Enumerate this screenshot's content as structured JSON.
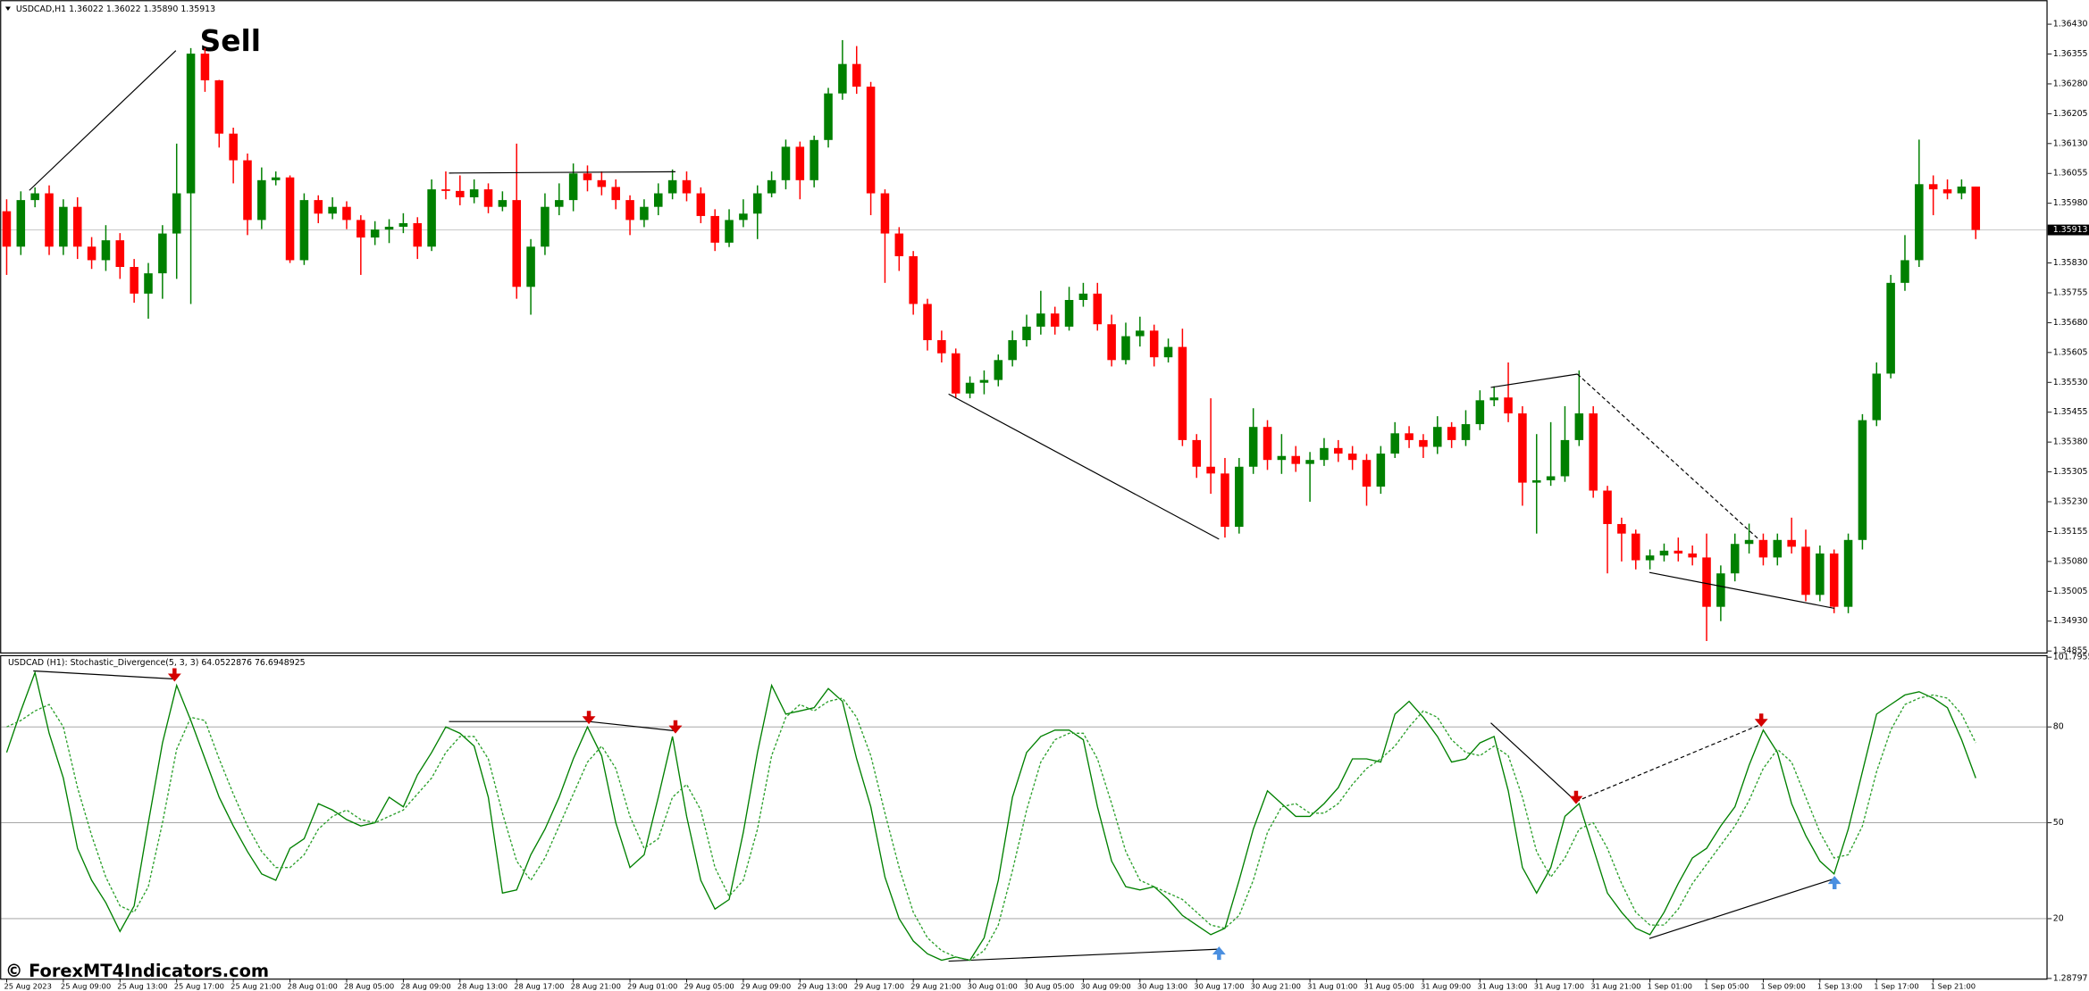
{
  "watermark": "© ForexMT4Indicators.com",
  "chart_data": [
    {
      "type": "candlestick",
      "title": "USDCAD,H1  1.36022 1.36022 1.35890 1.35913",
      "annotation": "Sell",
      "up_color": "#008000",
      "down_color": "#ff0000",
      "current_price": 1.35913,
      "ylim": [
        1.34855,
        1.36474
      ],
      "yticks": [
        {
          "value": 1.3643,
          "label": "1.36430"
        },
        1.36355,
        {
          "value": 1.3628,
          "label": "1.36280"
        },
        1.36205,
        {
          "value": 1.3613,
          "label": "1.36130"
        },
        1.36055,
        {
          "value": 1.3598,
          "label": "1.35980"
        },
        {
          "value": 1.3583,
          "label": "1.35830"
        },
        1.35755,
        {
          "value": 1.3568,
          "label": "1.35680"
        },
        1.35605,
        {
          "value": 1.3553,
          "label": "1.35530"
        },
        1.35455,
        {
          "value": 1.3538,
          "label": "1.35380"
        },
        1.35305,
        {
          "value": 1.3523,
          "label": "1.35230"
        },
        1.35155,
        {
          "value": 1.3508,
          "label": "1.35080"
        },
        1.35005,
        {
          "value": 1.3493,
          "label": "1.34930"
        },
        1.34855
      ],
      "open": [
        1.3596,
        1.35871,
        1.35988,
        1.36005,
        1.35871,
        1.35971,
        1.35871,
        1.35837,
        1.35887,
        1.3582,
        1.35753,
        1.35804,
        1.35904,
        1.36005,
        1.36356,
        1.36289,
        1.36155,
        1.36088,
        1.35938,
        1.36038,
        1.36045,
        1.35837,
        1.35988,
        1.35954,
        1.35971,
        1.35938,
        1.35894,
        1.35914,
        1.35921,
        1.3593,
        1.35871,
        1.36015,
        1.36011,
        1.35995,
        1.36015,
        1.35971,
        1.35988,
        1.3577,
        1.35871,
        1.35971,
        1.35988,
        1.36055,
        1.36038,
        1.36021,
        1.35988,
        1.35938,
        1.35971,
        1.36005,
        1.36038,
        1.36005,
        1.35948,
        1.35881,
        1.35938,
        1.35954,
        1.36005,
        1.36038,
        1.36122,
        1.36038,
        1.36139,
        1.36256,
        1.3633,
        1.36273,
        1.36005,
        1.35904,
        1.35847,
        1.35727,
        1.35636,
        1.35603,
        1.35502,
        1.35529,
        1.35536,
        1.35586,
        1.35636,
        1.3567,
        1.35703,
        1.3567,
        1.35737,
        1.35753,
        1.35676,
        1.35586,
        1.35646,
        1.3566,
        1.35593,
        1.35619,
        1.35385,
        1.35318,
        1.35301,
        1.35167,
        1.35318,
        1.35418,
        1.35335,
        1.35345,
        1.35325,
        1.35335,
        1.35365,
        1.35351,
        1.35335,
        1.35268,
        1.35351,
        1.35402,
        1.35385,
        1.35368,
        1.35418,
        1.35385,
        1.35425,
        1.35485,
        1.35492,
        1.35452,
        1.35278,
        1.35284,
        1.35294,
        1.35385,
        1.35452,
        1.35258,
        1.35174,
        1.3515,
        1.35083,
        1.35095,
        1.35107,
        1.351,
        1.3509,
        1.34966,
        1.3505,
        1.35124,
        1.35134,
        1.3509,
        1.35134,
        1.35117,
        1.34996,
        1.351,
        1.34966,
        1.35134,
        1.35435,
        1.35552,
        1.3578,
        1.35837,
        1.36028,
        1.36015,
        1.36005,
        1.36022
      ],
      "high": [
        1.3599,
        1.3601,
        1.3602,
        1.36025,
        1.3599,
        1.35995,
        1.35895,
        1.35925,
        1.35905,
        1.3584,
        1.3583,
        1.35925,
        1.3613,
        1.3637,
        1.3637,
        1.3629,
        1.3617,
        1.36105,
        1.3607,
        1.3606,
        1.3605,
        1.36005,
        1.36,
        1.35995,
        1.35985,
        1.3595,
        1.35935,
        1.3594,
        1.35955,
        1.35945,
        1.3604,
        1.3606,
        1.3605,
        1.3604,
        1.3603,
        1.3601,
        1.3613,
        1.3589,
        1.36005,
        1.3603,
        1.3608,
        1.36075,
        1.3606,
        1.3604,
        1.36,
        1.3599,
        1.3603,
        1.36065,
        1.3606,
        1.3602,
        1.35965,
        1.35965,
        1.3599,
        1.36025,
        1.3606,
        1.3614,
        1.36135,
        1.3615,
        1.3627,
        1.3639,
        1.36375,
        1.36285,
        1.36015,
        1.3592,
        1.3586,
        1.3574,
        1.3566,
        1.35615,
        1.35545,
        1.3556,
        1.356,
        1.3566,
        1.357,
        1.3576,
        1.3572,
        1.3577,
        1.3578,
        1.3578,
        1.357,
        1.3568,
        1.35695,
        1.35675,
        1.3564,
        1.35665,
        1.354,
        1.3549,
        1.3534,
        1.3534,
        1.35465,
        1.35435,
        1.354,
        1.3537,
        1.35355,
        1.3539,
        1.35385,
        1.3537,
        1.3535,
        1.3537,
        1.3543,
        1.3542,
        1.354,
        1.35445,
        1.3543,
        1.3546,
        1.3551,
        1.3552,
        1.3558,
        1.3547,
        1.354,
        1.3543,
        1.3547,
        1.3556,
        1.3547,
        1.3527,
        1.3519,
        1.3516,
        1.3511,
        1.35125,
        1.3514,
        1.3512,
        1.3515,
        1.3507,
        1.3515,
        1.35175,
        1.3515,
        1.3515,
        1.3519,
        1.3516,
        1.3512,
        1.3511,
        1.3515,
        1.3545,
        1.3558,
        1.358,
        1.359,
        1.3614,
        1.3605,
        1.3604,
        1.3604,
        1.36022
      ],
      "low": [
        1.358,
        1.3585,
        1.3597,
        1.3585,
        1.3585,
        1.3584,
        1.35815,
        1.3581,
        1.3579,
        1.3573,
        1.3569,
        1.3574,
        1.3579,
        1.35727,
        1.3626,
        1.3612,
        1.3603,
        1.359,
        1.35915,
        1.36025,
        1.3583,
        1.35825,
        1.3593,
        1.3594,
        1.35915,
        1.358,
        1.35875,
        1.3588,
        1.35905,
        1.3584,
        1.3586,
        1.3599,
        1.35975,
        1.3598,
        1.35955,
        1.3596,
        1.3574,
        1.357,
        1.3585,
        1.3595,
        1.3596,
        1.3601,
        1.36,
        1.35965,
        1.359,
        1.3592,
        1.3595,
        1.3599,
        1.35985,
        1.3593,
        1.3586,
        1.3587,
        1.3592,
        1.3589,
        1.35995,
        1.36015,
        1.3599,
        1.3602,
        1.3612,
        1.3624,
        1.36255,
        1.3595,
        1.3578,
        1.3581,
        1.357,
        1.3561,
        1.3558,
        1.3549,
        1.3549,
        1.355,
        1.3552,
        1.3557,
        1.3562,
        1.3565,
        1.3565,
        1.3566,
        1.3572,
        1.3566,
        1.3557,
        1.35575,
        1.3562,
        1.3557,
        1.3558,
        1.3537,
        1.3529,
        1.3525,
        1.3514,
        1.3515,
        1.353,
        1.3531,
        1.353,
        1.35305,
        1.3523,
        1.3532,
        1.3533,
        1.3531,
        1.3522,
        1.3525,
        1.3534,
        1.35365,
        1.3534,
        1.3535,
        1.35365,
        1.3537,
        1.3541,
        1.3547,
        1.3543,
        1.3522,
        1.3515,
        1.3527,
        1.3528,
        1.3537,
        1.3524,
        1.3505,
        1.3508,
        1.3506,
        1.3506,
        1.3508,
        1.3508,
        1.3507,
        1.3488,
        1.3493,
        1.3503,
        1.351,
        1.3507,
        1.3507,
        1.351,
        1.3498,
        1.3498,
        1.3495,
        1.3495,
        1.3511,
        1.3542,
        1.3554,
        1.3576,
        1.3582,
        1.3595,
        1.3599,
        1.3599,
        1.3589
      ],
      "close": [
        1.35871,
        1.35988,
        1.36005,
        1.35871,
        1.35971,
        1.35871,
        1.35837,
        1.35887,
        1.3582,
        1.35753,
        1.35804,
        1.35904,
        1.36005,
        1.36356,
        1.36289,
        1.36155,
        1.36088,
        1.35938,
        1.36038,
        1.36045,
        1.35837,
        1.35988,
        1.35954,
        1.35971,
        1.35938,
        1.35894,
        1.35914,
        1.35921,
        1.3593,
        1.35871,
        1.36015,
        1.36011,
        1.35995,
        1.36015,
        1.35971,
        1.35988,
        1.3577,
        1.35871,
        1.35971,
        1.35988,
        1.36055,
        1.36038,
        1.36021,
        1.35988,
        1.35938,
        1.35971,
        1.36005,
        1.36038,
        1.36005,
        1.35948,
        1.35881,
        1.35938,
        1.35954,
        1.36005,
        1.36038,
        1.36122,
        1.36038,
        1.36139,
        1.36256,
        1.3633,
        1.36273,
        1.36005,
        1.35904,
        1.35847,
        1.35727,
        1.35636,
        1.35603,
        1.35502,
        1.35529,
        1.35536,
        1.35586,
        1.35636,
        1.3567,
        1.35703,
        1.3567,
        1.35737,
        1.35753,
        1.35676,
        1.35586,
        1.35646,
        1.3566,
        1.35593,
        1.35619,
        1.35385,
        1.35318,
        1.35301,
        1.35167,
        1.35318,
        1.35418,
        1.35335,
        1.35345,
        1.35325,
        1.35335,
        1.35365,
        1.35351,
        1.35335,
        1.35268,
        1.35351,
        1.35402,
        1.35385,
        1.35368,
        1.35418,
        1.35385,
        1.35425,
        1.35485,
        1.35492,
        1.35452,
        1.35278,
        1.35284,
        1.35294,
        1.35385,
        1.35452,
        1.35258,
        1.35174,
        1.3515,
        1.35083,
        1.35095,
        1.35107,
        1.351,
        1.3509,
        1.34966,
        1.3505,
        1.35124,
        1.35134,
        1.3509,
        1.35134,
        1.35117,
        1.34996,
        1.351,
        1.34966,
        1.35134,
        1.35435,
        1.35552,
        1.3578,
        1.35837,
        1.36028,
        1.36015,
        1.36005,
        1.36022,
        1.35913
      ]
    },
    {
      "type": "line",
      "title": "USDCAD (H1): Stochastic_Divergence(5, 3, 3) 64.0522876 76.6948925",
      "ylim": [
        1.28797,
        101.79558
      ],
      "yticks": [
        101.79558,
        80,
        50,
        20,
        1.28797
      ],
      "categories": [
        "25 Aug 2023",
        null,
        null,
        null,
        "25 Aug 09:00",
        null,
        null,
        null,
        "25 Aug 13:00",
        null,
        null,
        null,
        "25 Aug 17:00",
        null,
        null,
        null,
        "25 Aug 21:00",
        null,
        null,
        null,
        "28 Aug 01:00",
        null,
        null,
        null,
        "28 Aug 05:00",
        null,
        null,
        null,
        "28 Aug 09:00",
        null,
        null,
        null,
        "28 Aug 13:00",
        null,
        null,
        null,
        "28 Aug 17:00",
        null,
        null,
        null,
        "28 Aug 21:00",
        null,
        null,
        null,
        "29 Aug 01:00",
        null,
        null,
        null,
        "29 Aug 05:00",
        null,
        null,
        null,
        "29 Aug 09:00",
        null,
        null,
        null,
        "29 Aug 13:00",
        null,
        null,
        null,
        "29 Aug 17:00",
        null,
        null,
        null,
        "29 Aug 21:00",
        null,
        null,
        null,
        "30 Aug 01:00",
        null,
        null,
        null,
        "30 Aug 05:00",
        null,
        null,
        null,
        "30 Aug 09:00",
        null,
        null,
        null,
        "30 Aug 13:00",
        null,
        null,
        null,
        "30 Aug 17:00",
        null,
        null,
        null,
        "30 Aug 21:00",
        null,
        null,
        null,
        "31 Aug 01:00",
        null,
        null,
        null,
        "31 Aug 05:00",
        null,
        null,
        null,
        "31 Aug 09:00",
        null,
        null,
        null,
        "31 Aug 13:00",
        null,
        null,
        null,
        "31 Aug 17:00",
        null,
        null,
        null,
        "31 Aug 21:00",
        null,
        null,
        null,
        "1 Sep 01:00",
        null,
        null,
        null,
        "1 Sep 05:00",
        null,
        null,
        null,
        "1 Sep 09:00",
        null,
        null,
        null,
        "1 Sep 13:00",
        null,
        null,
        null,
        "1 Sep 17:00",
        null,
        null,
        null,
        "1 Sep 21:00",
        null,
        null,
        null
      ],
      "series": [
        {
          "color": "#008000",
          "dash": false,
          "values": [
            72,
            85,
            97,
            78,
            64,
            42,
            32,
            25,
            16,
            24,
            50,
            75,
            93,
            82,
            70,
            58,
            49,
            41,
            34,
            32,
            42,
            45,
            56,
            54,
            51,
            49,
            50,
            58,
            55,
            65,
            72,
            80,
            78,
            74,
            58,
            28,
            29,
            40,
            48,
            58,
            70,
            80,
            71,
            50,
            36,
            40,
            58,
            77,
            52,
            32,
            23,
            26,
            47,
            72,
            93,
            84,
            85,
            86,
            92,
            88,
            70,
            55,
            33,
            20,
            13,
            9,
            7,
            8,
            7,
            14,
            32,
            58,
            72,
            77,
            79,
            79,
            76,
            55,
            38,
            30,
            29,
            30,
            26,
            21,
            18,
            15,
            17,
            32,
            48,
            60,
            56,
            52,
            52,
            56,
            61,
            70,
            70,
            69,
            84,
            88,
            83,
            77,
            69,
            70,
            75,
            77,
            60,
            36,
            28,
            36,
            52,
            56,
            42,
            28,
            22,
            17,
            15,
            22,
            31,
            39,
            42,
            49,
            55,
            68,
            79,
            72,
            56,
            46,
            38,
            34,
            48,
            66,
            84,
            87,
            90,
            91,
            89,
            86,
            76,
            64
          ]
        },
        {
          "color": "#2ca02c",
          "dash": true,
          "values": [
            80,
            82,
            85,
            87,
            80,
            61,
            46,
            33,
            24,
            22,
            30,
            50,
            73,
            83,
            82,
            70,
            59,
            49,
            41,
            36,
            36,
            40,
            48,
            52,
            54,
            51,
            50,
            52,
            54,
            59,
            64,
            72,
            77,
            77,
            70,
            53,
            38,
            32,
            39,
            49,
            59,
            69,
            74,
            67,
            52,
            42,
            45,
            58,
            62,
            54,
            36,
            27,
            32,
            48,
            71,
            83,
            87,
            85,
            88,
            89,
            83,
            71,
            53,
            36,
            22,
            14,
            10,
            8,
            7,
            10,
            18,
            35,
            54,
            69,
            76,
            78,
            78,
            70,
            56,
            41,
            32,
            30,
            28,
            26,
            22,
            18,
            17,
            21,
            32,
            47,
            55,
            56,
            53,
            53,
            56,
            62,
            67,
            70,
            74,
            80,
            85,
            83,
            76,
            72,
            71,
            74,
            71,
            58,
            41,
            33,
            39,
            48,
            50,
            42,
            31,
            22,
            18,
            18,
            23,
            31,
            37,
            43,
            49,
            57,
            67,
            73,
            69,
            58,
            47,
            39,
            40,
            49,
            66,
            79,
            87,
            89,
            90,
            89,
            84,
            75
          ]
        }
      ]
    }
  ]
}
